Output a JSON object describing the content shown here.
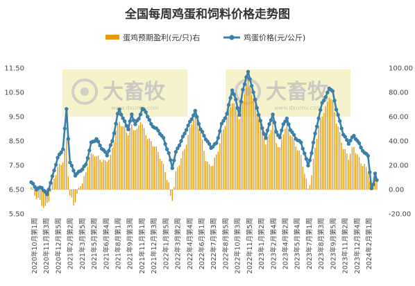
{
  "chart_data": {
    "type": "bar+line",
    "title": "全国每周鸡蛋和饲料价格走势图",
    "legend": [
      {
        "name": "蛋鸡预期盈利(元/只)右",
        "color": "#E89B0C",
        "mark": "bar"
      },
      {
        "name": "鸡蛋价格(元/公斤)",
        "color": "#3A7FA8",
        "mark": "line-marker"
      }
    ],
    "left_axis": {
      "min": 5.5,
      "max": 11.5,
      "ticks": [
        "5.50",
        "6.50",
        "7.50",
        "8.50",
        "9.50",
        "10.50",
        "11.50"
      ]
    },
    "right_axis": {
      "min": -20,
      "max": 100,
      "ticks": [
        "-20.00",
        "0.00",
        "20.00",
        "40.00",
        "60.00",
        "80.00",
        "100.00"
      ]
    },
    "x_labels": [
      "2020年10月第1周",
      "2020年11月第3周",
      "2020年12月第5周",
      "2021年2月第2周",
      "2021年3月第5周",
      "2021年5月第2周",
      "2021年6月第4周",
      "2021年8月第1周",
      "2021年9月第3周",
      "2021年11月第1周",
      "2021年12月第3周",
      "2022年1月第5周",
      "2022年3月第2周",
      "2022年4月第4周",
      "2022年6月第1周",
      "2022年7月第3周",
      "2022年8月第5周",
      "2022年10月第3周",
      "2022年11月第5周",
      "2023年1月第2周",
      "2023年2月第4周",
      "2023年4月第2周",
      "2023年5月第4周",
      "2023年7月第1周",
      "2023年8月第3周",
      "2023年9月第5周",
      "2023年11月第2周",
      "2023年12月第4周",
      "2024年2月第1周"
    ],
    "watermark": {
      "brand": "大畜牧",
      "url": "www.dxumu.com"
    },
    "egg_price_keypoints": [
      [
        0,
        6.8
      ],
      [
        3,
        6.5
      ],
      [
        6,
        6.6
      ],
      [
        9,
        6.3
      ],
      [
        12,
        7.0
      ],
      [
        15,
        7.8
      ],
      [
        18,
        8.2
      ],
      [
        20,
        9.8
      ],
      [
        21,
        8.6
      ],
      [
        22,
        7.6
      ],
      [
        25,
        7.1
      ],
      [
        28,
        7.3
      ],
      [
        31,
        7.5
      ],
      [
        34,
        8.4
      ],
      [
        37,
        8.6
      ],
      [
        40,
        8.2
      ],
      [
        43,
        7.9
      ],
      [
        46,
        8.5
      ],
      [
        49,
        9.6
      ],
      [
        50,
        9.8
      ],
      [
        52,
        9.4
      ],
      [
        55,
        9.0
      ],
      [
        57,
        9.6
      ],
      [
        59,
        9.2
      ],
      [
        61,
        9.4
      ],
      [
        63,
        9.8
      ],
      [
        65,
        9.7
      ],
      [
        68,
        9.2
      ],
      [
        72,
        8.9
      ],
      [
        75,
        8.6
      ],
      [
        78,
        8.0
      ],
      [
        80,
        7.4
      ],
      [
        82,
        8.0
      ],
      [
        85,
        8.5
      ],
      [
        88,
        9.0
      ],
      [
        91,
        9.4
      ],
      [
        93,
        9.7
      ],
      [
        96,
        9.0
      ],
      [
        99,
        8.6
      ],
      [
        102,
        8.2
      ],
      [
        105,
        8.4
      ],
      [
        108,
        9.2
      ],
      [
        111,
        9.6
      ],
      [
        114,
        10.6
      ],
      [
        116,
        10.2
      ],
      [
        118,
        9.6
      ],
      [
        120,
        10.6
      ],
      [
        122,
        11.1
      ],
      [
        123,
        11.3
      ],
      [
        125,
        10.8
      ],
      [
        127,
        10.2
      ],
      [
        129,
        9.6
      ],
      [
        131,
        9.0
      ],
      [
        133,
        8.6
      ],
      [
        135,
        9.2
      ],
      [
        137,
        9.6
      ],
      [
        139,
        8.9
      ],
      [
        141,
        8.6
      ],
      [
        143,
        9.2
      ],
      [
        145,
        9.4
      ],
      [
        147,
        9.0
      ],
      [
        150,
        8.6
      ],
      [
        153,
        8.4
      ],
      [
        155,
        8.0
      ],
      [
        157,
        7.5
      ],
      [
        159,
        8.0
      ],
      [
        161,
        8.8
      ],
      [
        163,
        9.4
      ],
      [
        165,
        10.1
      ],
      [
        167,
        10.3
      ],
      [
        169,
        10.7
      ],
      [
        171,
        10.5
      ],
      [
        173,
        9.8
      ],
      [
        175,
        9.3
      ],
      [
        177,
        8.8
      ],
      [
        180,
        8.4
      ],
      [
        183,
        8.7
      ],
      [
        186,
        8.4
      ],
      [
        189,
        8.0
      ],
      [
        191,
        7.9
      ],
      [
        193,
        6.5
      ],
      [
        194,
        6.7
      ],
      [
        195,
        7.2
      ],
      [
        196,
        6.9
      ]
    ],
    "profit_keypoints": [
      [
        0,
        2
      ],
      [
        2,
        -6
      ],
      [
        5,
        -10
      ],
      [
        8,
        -14
      ],
      [
        10,
        -8
      ],
      [
        12,
        3
      ],
      [
        15,
        18
      ],
      [
        18,
        25
      ],
      [
        20,
        40
      ],
      [
        21,
        12
      ],
      [
        22,
        -6
      ],
      [
        24,
        -14
      ],
      [
        26,
        -3
      ],
      [
        28,
        5
      ],
      [
        31,
        12
      ],
      [
        33,
        26
      ],
      [
        36,
        30
      ],
      [
        39,
        26
      ],
      [
        42,
        21
      ],
      [
        45,
        27
      ],
      [
        48,
        50
      ],
      [
        50,
        56
      ],
      [
        52,
        50
      ],
      [
        55,
        46
      ],
      [
        57,
        54
      ],
      [
        60,
        48
      ],
      [
        62,
        56
      ],
      [
        64,
        48
      ],
      [
        67,
        42
      ],
      [
        70,
        36
      ],
      [
        73,
        26
      ],
      [
        76,
        16
      ],
      [
        78,
        6
      ],
      [
        79,
        -6
      ],
      [
        80,
        -8
      ],
      [
        82,
        12
      ],
      [
        85,
        26
      ],
      [
        88,
        40
      ],
      [
        91,
        54
      ],
      [
        93,
        60
      ],
      [
        96,
        48
      ],
      [
        99,
        26
      ],
      [
        101,
        18
      ],
      [
        103,
        20
      ],
      [
        105,
        28
      ],
      [
        108,
        46
      ],
      [
        111,
        58
      ],
      [
        114,
        72
      ],
      [
        116,
        68
      ],
      [
        118,
        60
      ],
      [
        120,
        72
      ],
      [
        122,
        86
      ],
      [
        123,
        90
      ],
      [
        125,
        80
      ],
      [
        127,
        70
      ],
      [
        129,
        60
      ],
      [
        131,
        48
      ],
      [
        133,
        36
      ],
      [
        135,
        46
      ],
      [
        137,
        58
      ],
      [
        139,
        40
      ],
      [
        141,
        32
      ],
      [
        143,
        46
      ],
      [
        145,
        54
      ],
      [
        147,
        48
      ],
      [
        150,
        36
      ],
      [
        153,
        26
      ],
      [
        155,
        14
      ],
      [
        157,
        2
      ],
      [
        159,
        12
      ],
      [
        161,
        34
      ],
      [
        163,
        50
      ],
      [
        165,
        62
      ],
      [
        167,
        68
      ],
      [
        169,
        78
      ],
      [
        171,
        70
      ],
      [
        173,
        55
      ],
      [
        175,
        46
      ],
      [
        177,
        36
      ],
      [
        180,
        26
      ],
      [
        183,
        34
      ],
      [
        186,
        26
      ],
      [
        189,
        20
      ],
      [
        191,
        14
      ],
      [
        193,
        -2
      ],
      [
        194,
        3
      ],
      [
        195,
        16
      ],
      [
        196,
        10
      ]
    ]
  }
}
